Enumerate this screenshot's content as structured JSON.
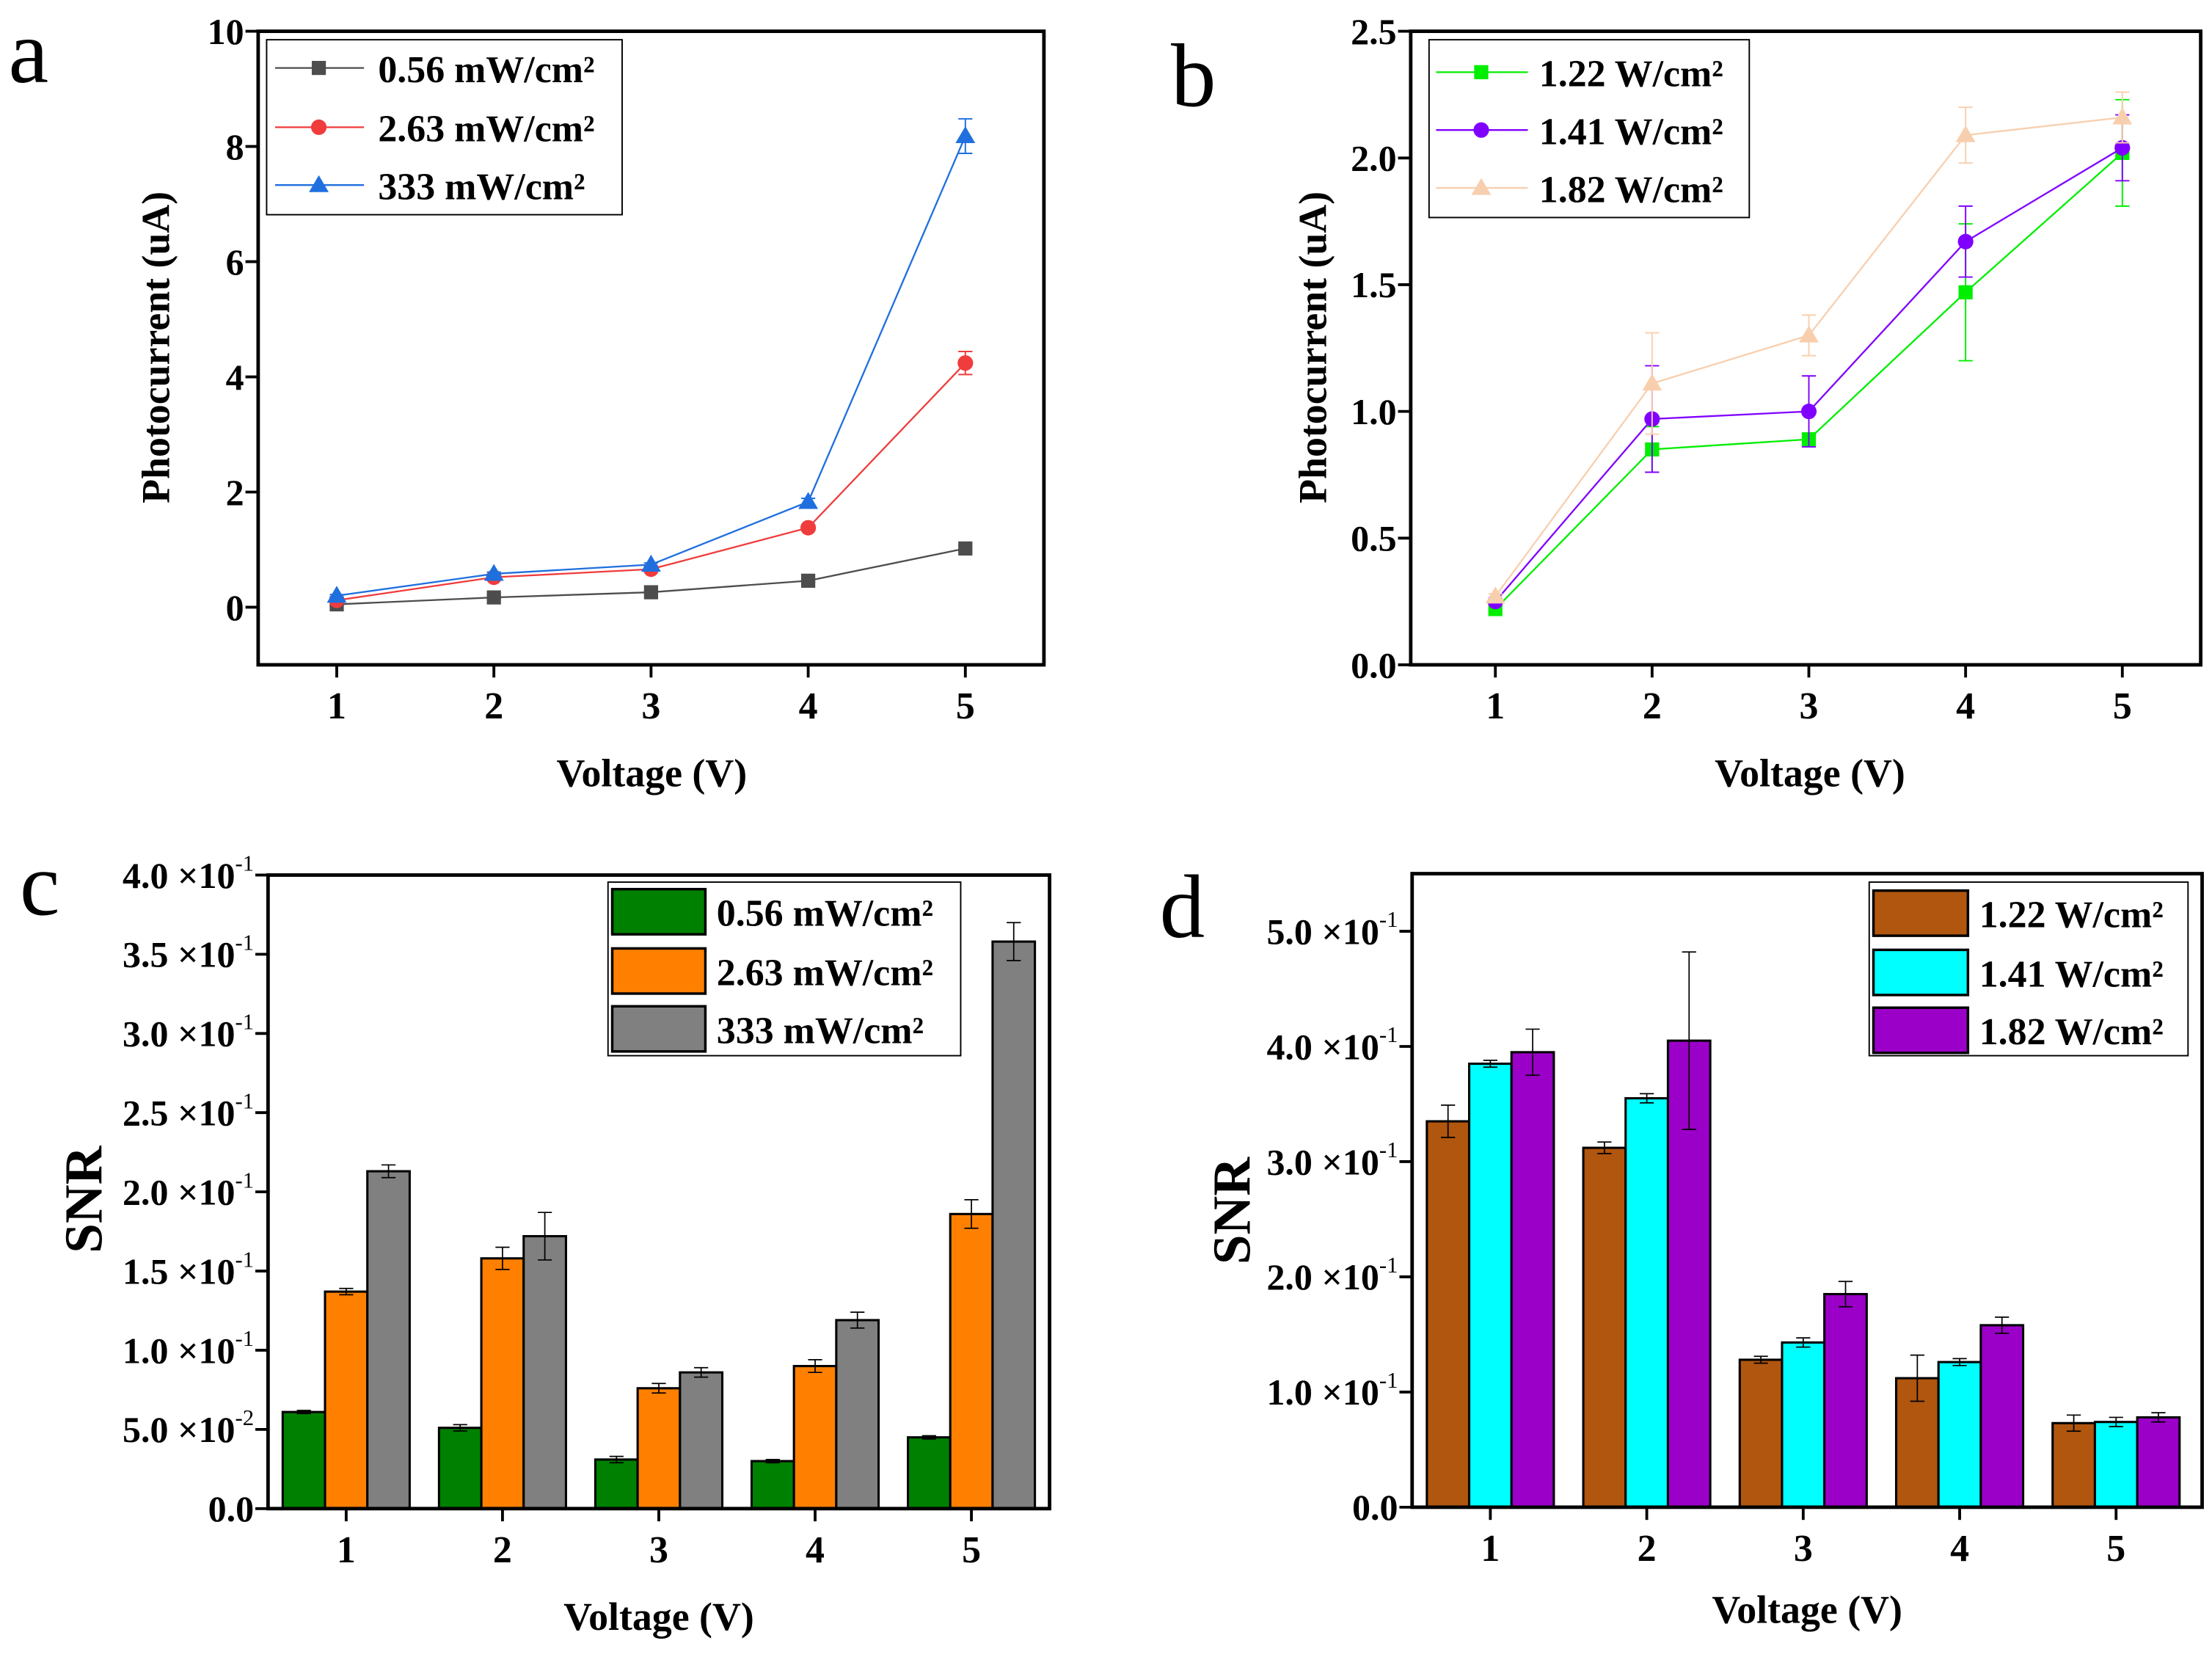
{
  "chart_data": [
    {
      "panel": "a",
      "type": "line",
      "xlabel": "Voltage (V)",
      "ylabel": "Photocurrent (uA)",
      "xlim": [
        0.5,
        5.5
      ],
      "ylim": [
        -1,
        10
      ],
      "x_ticks": [
        1,
        2,
        3,
        4,
        5
      ],
      "x_tick_labels": [
        "1",
        "2",
        "3",
        "4",
        "5"
      ],
      "y_ticks": [
        0,
        2,
        4,
        6,
        8,
        10
      ],
      "y_tick_labels": [
        "0",
        "2",
        "4",
        "6",
        "8",
        "10"
      ],
      "legend_position": "top-left",
      "x": [
        1,
        2,
        3,
        4,
        5
      ],
      "series": [
        {
          "name": "0.56 mW/cm²",
          "color": "#4d4d4d",
          "marker": "square",
          "values": [
            0.05,
            0.17,
            0.26,
            0.46,
            1.02
          ],
          "errors": [
            0.02,
            0.02,
            0.02,
            0.03,
            0.05
          ]
        },
        {
          "name": "2.63 mW/cm²",
          "color": "#f03c3c",
          "marker": "circle",
          "values": [
            0.12,
            0.52,
            0.66,
            1.38,
            4.24
          ],
          "errors": [
            0.02,
            0.03,
            0.03,
            0.05,
            0.2
          ]
        },
        {
          "name": "333 mW/cm²",
          "color": "#1f6fdf",
          "marker": "triangle",
          "values": [
            0.2,
            0.58,
            0.74,
            1.83,
            8.18
          ],
          "errors": [
            0.02,
            0.03,
            0.03,
            0.06,
            0.3
          ]
        }
      ]
    },
    {
      "panel": "b",
      "type": "line",
      "xlabel": "Voltage (V)",
      "ylabel": "Photocurrent (uA)",
      "xlim": [
        0.46,
        5.5
      ],
      "ylim": [
        0,
        2.5
      ],
      "x_ticks": [
        1,
        2,
        3,
        4,
        5
      ],
      "x_tick_labels": [
        "1",
        "2",
        "3",
        "4",
        "5"
      ],
      "y_ticks": [
        0,
        0.5,
        1,
        1.5,
        2,
        2.5
      ],
      "y_tick_labels": [
        "0.0",
        "0.5",
        "1.0",
        "1.5",
        "2.0",
        "2.5"
      ],
      "legend_position": "top-left",
      "x": [
        1,
        2,
        3,
        4,
        5
      ],
      "series": [
        {
          "name": "1.22 W/cm²",
          "color": "#00ee00",
          "marker": "square",
          "values": [
            0.22,
            0.85,
            0.89,
            1.47,
            2.02
          ],
          "errors": [
            0.01,
            0.09,
            0.02,
            0.27,
            0.21
          ]
        },
        {
          "name": "1.41 W/cm²",
          "color": "#8000ff",
          "marker": "circle",
          "values": [
            0.25,
            0.97,
            1.0,
            1.67,
            2.04
          ],
          "errors": [
            0.01,
            0.21,
            0.14,
            0.14,
            0.13
          ]
        },
        {
          "name": "1.82 W/cm²",
          "color": "#f8cfae",
          "marker": "triangle",
          "values": [
            0.27,
            1.11,
            1.3,
            2.09,
            2.16
          ],
          "errors": [
            0.01,
            0.2,
            0.08,
            0.11,
            0.1
          ]
        }
      ]
    },
    {
      "panel": "c",
      "type": "bar",
      "xlabel": "Voltage (V)",
      "ylabel": "SNR",
      "xlim": [
        0.5,
        5.5
      ],
      "ylim": [
        0,
        0.4
      ],
      "x_ticks": [
        1,
        2,
        3,
        4,
        5
      ],
      "x_tick_labels": [
        "1",
        "2",
        "3",
        "4",
        "5"
      ],
      "y_ticks": [
        0,
        0.05,
        0.1,
        0.15,
        0.2,
        0.25,
        0.3,
        0.35,
        0.4
      ],
      "y_tick_labels": [
        "0.0",
        "5.0 ×10",
        "1.0 ×10",
        "1.5 ×10",
        "2.0 ×10",
        "2.5 ×10",
        "3.0 ×10",
        "3.5 ×10",
        "4.0 ×10"
      ],
      "y_tick_exponents": [
        "",
        "-2",
        "-1",
        "-1",
        "-1",
        "-1",
        "-1",
        "-1",
        "-1"
      ],
      "legend_position": "top-right",
      "categories": [
        1,
        2,
        3,
        4,
        5
      ],
      "series": [
        {
          "name": "0.56 mW/cm²",
          "color": "#008000",
          "values": [
            0.061,
            0.051,
            0.031,
            0.03,
            0.045
          ],
          "errors": [
            0.001,
            0.002,
            0.002,
            0.001,
            0.001
          ]
        },
        {
          "name": "2.63 mW/cm²",
          "color": "#ff8000",
          "values": [
            0.137,
            0.158,
            0.076,
            0.09,
            0.186
          ],
          "errors": [
            0.002,
            0.007,
            0.003,
            0.004,
            0.009
          ]
        },
        {
          "name": "333 mW/cm²",
          "color": "#808080",
          "values": [
            0.213,
            0.172,
            0.086,
            0.119,
            0.358
          ],
          "errors": [
            0.004,
            0.015,
            0.003,
            0.005,
            0.012
          ]
        }
      ]
    },
    {
      "panel": "d",
      "type": "bar",
      "xlabel": "Voltage (V)",
      "ylabel": "SNR",
      "xlim": [
        0.5,
        5.55
      ],
      "ylim": [
        0,
        0.55
      ],
      "x_ticks": [
        1,
        2,
        3,
        4,
        5
      ],
      "x_tick_labels": [
        "1",
        "2",
        "3",
        "4",
        "5"
      ],
      "y_ticks": [
        0,
        0.1,
        0.2,
        0.3,
        0.4,
        0.5
      ],
      "y_tick_labels": [
        "0.0",
        "1.0 ×10",
        "2.0 ×10",
        "3.0 ×10",
        "4.0 ×10",
        "5.0 ×10"
      ],
      "y_tick_exponents": [
        "",
        "-1",
        "-1",
        "-1",
        "-1",
        "-1"
      ],
      "legend_position": "top-right",
      "categories": [
        1,
        2,
        3,
        4,
        5
      ],
      "series": [
        {
          "name": "1.22 W/cm²",
          "color": "#b0560f",
          "values": [
            0.335,
            0.312,
            0.128,
            0.112,
            0.073
          ],
          "errors": [
            0.014,
            0.005,
            0.003,
            0.02,
            0.007
          ]
        },
        {
          "name": "1.41 W/cm²",
          "color": "#00ffff",
          "values": [
            0.385,
            0.355,
            0.143,
            0.126,
            0.074
          ],
          "errors": [
            0.003,
            0.004,
            0.004,
            0.003,
            0.004
          ]
        },
        {
          "name": "1.82 W/cm²",
          "color": "#9b00c8",
          "values": [
            0.395,
            0.405,
            0.185,
            0.158,
            0.078
          ],
          "errors": [
            0.02,
            0.077,
            0.011,
            0.007,
            0.004
          ]
        }
      ]
    }
  ],
  "panel_letters": [
    "a",
    "b",
    "c",
    "d"
  ]
}
